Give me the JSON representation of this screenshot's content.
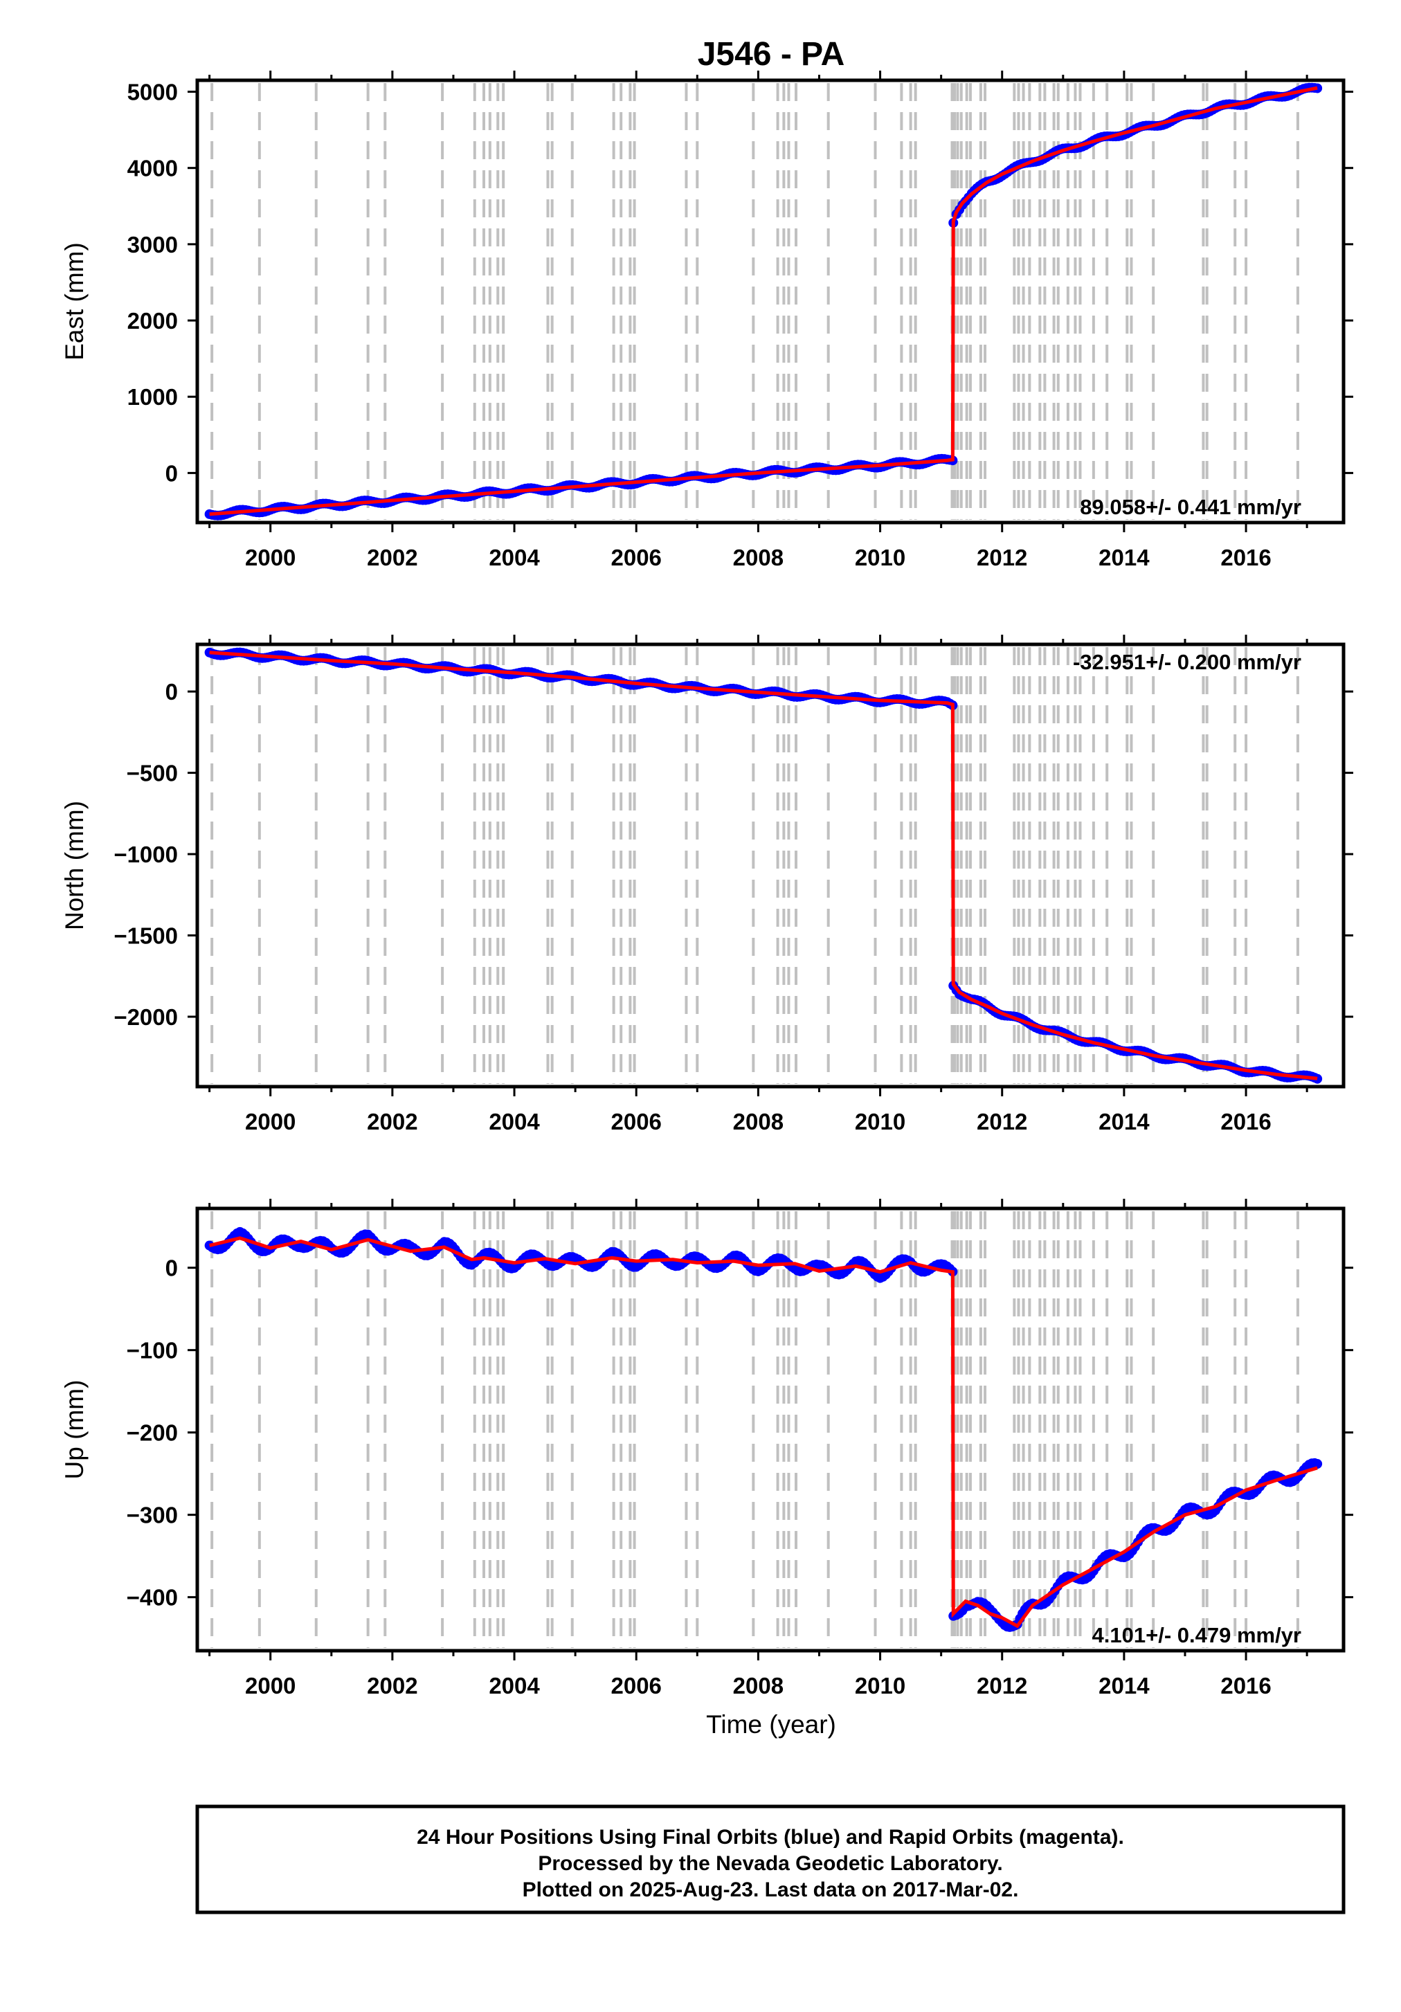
{
  "title": "J546 - PA",
  "xlabel": "Time (year)",
  "footer": {
    "line1": "24 Hour Positions Using Final Orbits (blue) and Rapid Orbits (magenta).",
    "line2": "Processed by the Nevada Geodetic Laboratory.",
    "line3": "Plotted on 2025-Aug-23. Last data on 2017-Mar-02."
  },
  "colors": {
    "final_orbits": "#0000ff",
    "model_fit": "#ff0000",
    "event_lines": "#c0c0c0",
    "frame": "#000000"
  },
  "chart_data": [
    {
      "type": "scatter",
      "panel": "east",
      "ylabel": "East (mm)",
      "rate_text": "89.058+/- 0.441 mm/yr",
      "xlim": [
        1998.8,
        2017.6
      ],
      "ylim": [
        -650,
        5150
      ],
      "xticks": [
        "2000",
        "2002",
        "2004",
        "2006",
        "2008",
        "2010",
        "2012",
        "2014",
        "2016"
      ],
      "yticks": [
        "0",
        "1000",
        "2000",
        "3000",
        "4000",
        "5000"
      ],
      "grid": false,
      "series": [
        {
          "x": [
            1999.0,
            2000.0,
            2001.0,
            2002.0,
            2003.0,
            2004.0,
            2005.0,
            2006.0,
            2007.0,
            2008.0,
            2009.0,
            2010.0,
            2011.1,
            2011.19,
            2011.2,
            2011.25,
            2011.35,
            2011.5,
            2011.75,
            2012.0,
            2012.5,
            2013.0,
            2013.5,
            2014.0,
            2014.5,
            2015.0,
            2015.5,
            2016.0,
            2016.5,
            2017.17
          ],
          "y": [
            -540,
            -480,
            -420,
            -360,
            -300,
            -240,
            -180,
            -120,
            -60,
            0,
            50,
            100,
            165,
            175,
            3300,
            3420,
            3540,
            3660,
            3810,
            3920,
            4090,
            4230,
            4350,
            4460,
            4560,
            4670,
            4780,
            4860,
            4940,
            5050
          ]
        }
      ]
    },
    {
      "type": "scatter",
      "panel": "north",
      "ylabel": "North (mm)",
      "rate_text": "-32.951+/- 0.200 mm/yr",
      "xlim": [
        1998.8,
        2017.6
      ],
      "ylim": [
        -2430,
        290
      ],
      "xticks": [
        "2000",
        "2002",
        "2004",
        "2006",
        "2008",
        "2010",
        "2012",
        "2014",
        "2016"
      ],
      "yticks": [
        "0",
        "−500",
        "−1000",
        "−1500",
        "−2000"
      ],
      "grid": false,
      "series": [
        {
          "x": [
            1999.0,
            2000.0,
            2001.0,
            2002.0,
            2003.0,
            2004.0,
            2005.0,
            2006.0,
            2007.0,
            2008.0,
            2009.0,
            2010.0,
            2011.1,
            2011.19,
            2011.2,
            2011.3,
            2011.5,
            2011.75,
            2012.0,
            2012.5,
            2013.0,
            2013.5,
            2014.0,
            2014.5,
            2015.0,
            2015.5,
            2016.0,
            2016.5,
            2017.17
          ],
          "y": [
            240,
            215,
            190,
            170,
            140,
            115,
            85,
            50,
            20,
            -5,
            -30,
            -55,
            -70,
            -80,
            -1800,
            -1850,
            -1895,
            -1935,
            -1980,
            -2050,
            -2110,
            -2160,
            -2200,
            -2240,
            -2270,
            -2300,
            -2330,
            -2355,
            -2380
          ]
        }
      ]
    },
    {
      "type": "scatter",
      "panel": "up",
      "ylabel": "Up (mm)",
      "rate_text": "4.101+/- 0.479 mm/yr",
      "xlim": [
        1998.8,
        2017.6
      ],
      "ylim": [
        -465,
        72
      ],
      "xticks": [
        "2000",
        "2002",
        "2004",
        "2006",
        "2008",
        "2010",
        "2012",
        "2014",
        "2016"
      ],
      "yticks": [
        "0",
        "−100",
        "−200",
        "−300",
        "−400"
      ],
      "grid": false,
      "series": [
        {
          "x": [
            1999.0,
            1999.5,
            2000.0,
            2000.5,
            2001.0,
            2001.6,
            2002.3,
            2002.85,
            2003.3,
            2003.5,
            2004.0,
            2004.5,
            2005.0,
            2005.6,
            2006.0,
            2006.6,
            2007.0,
            2007.6,
            2008.0,
            2008.6,
            2009.0,
            2009.6,
            2010.0,
            2010.5,
            2011.0,
            2011.19,
            2011.2,
            2011.4,
            2011.6,
            2011.8,
            2012.0,
            2012.25,
            2012.5,
            2013.0,
            2013.5,
            2014.0,
            2014.5,
            2015.0,
            2015.5,
            2016.0,
            2016.5,
            2017.17
          ],
          "y": [
            27,
            36,
            24,
            32,
            22,
            34,
            20,
            25,
            10,
            12,
            6,
            11,
            5,
            12,
            8,
            10,
            6,
            8,
            3,
            5,
            -4,
            2,
            -5,
            6,
            -3,
            -5,
            -420,
            -405,
            -410,
            -420,
            -425,
            -435,
            -410,
            -385,
            -365,
            -345,
            -320,
            -300,
            -290,
            -270,
            -258,
            -243
          ]
        }
      ]
    }
  ]
}
